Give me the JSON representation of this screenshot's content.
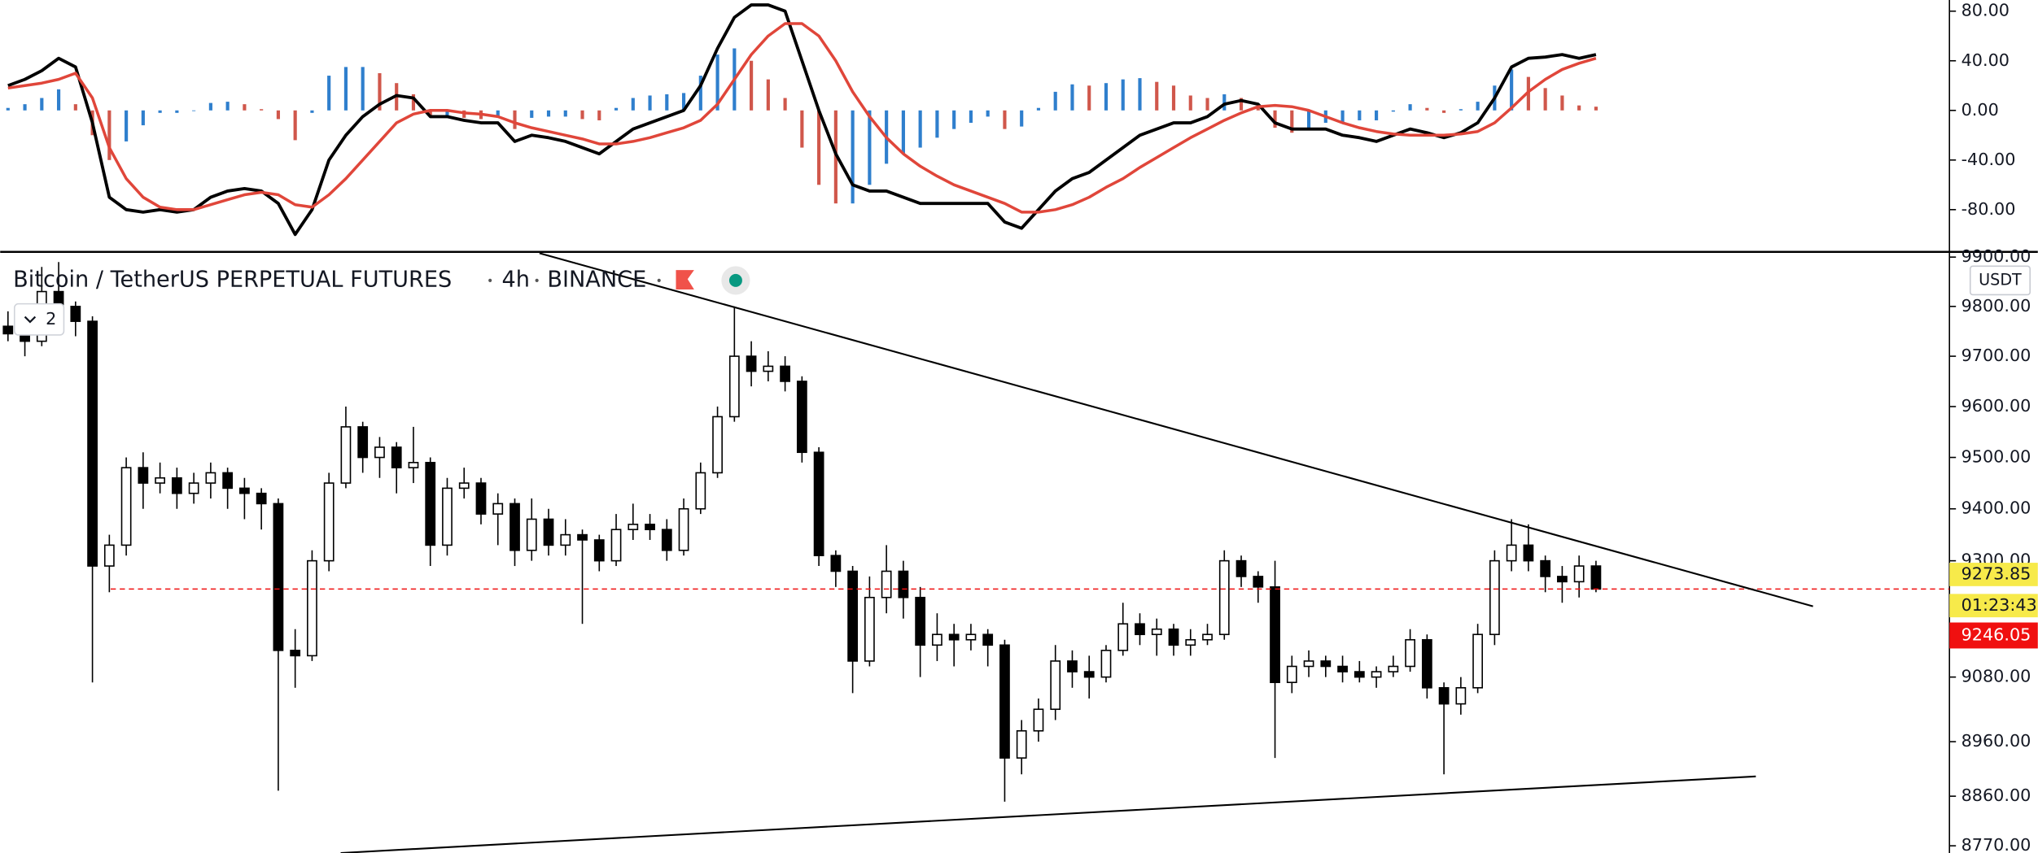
{
  "chart_data": [
    {
      "type": "macd",
      "ylim": [
        -113,
        89
      ],
      "yticks": [
        {
          "value": 80,
          "label": "80.00"
        },
        {
          "value": 40,
          "label": "40.00"
        },
        {
          "value": 0,
          "label": "0.00"
        },
        {
          "value": -40,
          "label": "-40.00"
        },
        {
          "value": -80,
          "label": "-80.00"
        }
      ],
      "series": [
        {
          "color": "#000000",
          "values": [
            20,
            25,
            32,
            42,
            35,
            -10,
            -70,
            -80,
            -82,
            -80,
            -82,
            -80,
            -70,
            -65,
            -63,
            -65,
            -75,
            -100,
            -80,
            -40,
            -20,
            -5,
            5,
            12,
            10,
            -5,
            -5,
            -8,
            -10,
            -10,
            -25,
            -20,
            -22,
            -25,
            -30,
            -35,
            -25,
            -15,
            -10,
            -5,
            0,
            20,
            50,
            75,
            85,
            85,
            80,
            40,
            0,
            -35,
            -60,
            -65,
            -65,
            -70,
            -75,
            -75,
            -75,
            -75,
            -75,
            -90,
            -95,
            -80,
            -65,
            -55,
            -50,
            -40,
            -30,
            -20,
            -15,
            -10,
            -10,
            -5,
            5,
            8,
            5,
            -10,
            -15,
            -15,
            -15,
            -20,
            -22,
            -25,
            -20,
            -15,
            -18,
            -22,
            -18,
            -10,
            10,
            35,
            42,
            43,
            45,
            42,
            45
          ]
        },
        {
          "color": "#e0463a",
          "values": [
            18,
            20,
            22,
            25,
            30,
            10,
            -30,
            -55,
            -70,
            -78,
            -80,
            -80,
            -76,
            -72,
            -68,
            -66,
            -68,
            -76,
            -78,
            -68,
            -55,
            -40,
            -25,
            -10,
            -3,
            0,
            0,
            -2,
            -3,
            -5,
            -10,
            -14,
            -17,
            -20,
            -23,
            -27,
            -27,
            -25,
            -22,
            -18,
            -14,
            -8,
            5,
            25,
            45,
            60,
            70,
            70,
            60,
            40,
            15,
            -5,
            -22,
            -35,
            -45,
            -53,
            -60,
            -65,
            -70,
            -75,
            -82,
            -82,
            -80,
            -76,
            -70,
            -62,
            -55,
            -46,
            -38,
            -30,
            -22,
            -15,
            -8,
            -2,
            3,
            4,
            3,
            0,
            -5,
            -10,
            -14,
            -17,
            -19,
            -20,
            -20,
            -20,
            -19,
            -17,
            -10,
            2,
            15,
            25,
            33,
            38,
            42
          ]
        }
      ],
      "histogram": {
        "rise_color": "#2f7fcd",
        "fall_color": "#d0574b",
        "values": [
          2,
          5,
          10,
          17,
          5,
          -20,
          -40,
          -25,
          -12,
          -2,
          -2,
          0,
          6,
          7,
          5,
          1,
          -7,
          -24,
          -2,
          28,
          35,
          35,
          30,
          22,
          13,
          -5,
          -5,
          -6,
          -7,
          -5,
          -15,
          -6,
          -5,
          -5,
          -7,
          -8,
          2,
          10,
          12,
          13,
          14,
          28,
          45,
          50,
          40,
          25,
          10,
          -30,
          -60,
          -75,
          -75,
          -60,
          -43,
          -35,
          -30,
          -22,
          -15,
          -10,
          -5,
          -15,
          -13,
          2,
          15,
          21,
          20,
          22,
          25,
          26,
          23,
          20,
          12,
          10,
          13,
          10,
          2,
          -14,
          -18,
          -15,
          -10,
          -10,
          -8,
          -8,
          -1,
          5,
          2,
          -2,
          1,
          7,
          20,
          33,
          27,
          18,
          12,
          4,
          3
        ]
      }
    },
    {
      "type": "candlestick",
      "title": "Bitcoin / TetherUS PERPETUAL FUTURES",
      "interval": "4h",
      "exchange": "BINANCE",
      "currency": "USDT",
      "indicator_count": 2,
      "log_scale": true,
      "ylim": [
        8757,
        9908
      ],
      "yticks": [
        {
          "value": 9900,
          "label": "9900.00"
        },
        {
          "value": 9800,
          "label": "9800.00"
        },
        {
          "value": 9700,
          "label": "9700.00"
        },
        {
          "value": 9600,
          "label": "9600.00"
        },
        {
          "value": 9500,
          "label": "9500.00"
        },
        {
          "value": 9400,
          "label": "9400.00"
        },
        {
          "value": 9300,
          "label": "9300.00"
        },
        {
          "value": 9080,
          "label": "9080.00"
        },
        {
          "value": 8960,
          "label": "8960.00"
        },
        {
          "value": 8860,
          "label": "8860.00"
        },
        {
          "value": 8770,
          "label": "8770.00"
        }
      ],
      "up_color": "#ffffff",
      "down_color": "#000000",
      "last_price_color": "#f01010",
      "marker_color": "#f7ea4a",
      "marker_price": 9273.85,
      "countdown": "01:23:43",
      "open": [
        9760,
        9745,
        9730,
        9830,
        9800,
        9770,
        9290,
        9330,
        9480,
        9450,
        9460,
        9430,
        9450,
        9470,
        9440,
        9430,
        9410,
        9130,
        9120,
        9300,
        9450,
        9560,
        9500,
        9520,
        9480,
        9490,
        9330,
        9440,
        9450,
        9390,
        9410,
        9320,
        9380,
        9330,
        9350,
        9340,
        9300,
        9360,
        9370,
        9360,
        9320,
        9400,
        9470,
        9580,
        9700,
        9670,
        9680,
        9650,
        9510,
        9310,
        9280,
        9110,
        9230,
        9280,
        9230,
        9140,
        9160,
        9150,
        9160,
        9140,
        8930,
        8980,
        9020,
        9110,
        9090,
        9080,
        9130,
        9180,
        9160,
        9170,
        9140,
        9150,
        9160,
        9300,
        9270,
        9250,
        9070,
        9100,
        9110,
        9100,
        9090,
        9080,
        9090,
        9100,
        9150,
        9060,
        9030,
        9060,
        9160,
        9300,
        9330,
        9300,
        9270,
        9260,
        9290
      ],
      "high": [
        9790,
        9760,
        9880,
        9890,
        9810,
        9780,
        9350,
        9500,
        9510,
        9490,
        9480,
        9470,
        9490,
        9480,
        9460,
        9440,
        9420,
        9170,
        9320,
        9470,
        9600,
        9570,
        9540,
        9530,
        9560,
        9500,
        9460,
        9480,
        9460,
        9430,
        9420,
        9420,
        9400,
        9380,
        9360,
        9350,
        9390,
        9410,
        9390,
        9380,
        9420,
        9490,
        9600,
        9800,
        9730,
        9710,
        9700,
        9660,
        9520,
        9320,
        9290,
        9270,
        9330,
        9300,
        9250,
        9200,
        9180,
        9180,
        9170,
        9150,
        9000,
        9040,
        9140,
        9130,
        9120,
        9140,
        9220,
        9200,
        9190,
        9180,
        9170,
        9180,
        9320,
        9310,
        9280,
        9300,
        9120,
        9130,
        9120,
        9120,
        9110,
        9100,
        9120,
        9170,
        9160,
        9070,
        9080,
        9180,
        9320,
        9380,
        9370,
        9310,
        9290,
        9310,
        9300
      ],
      "low": [
        9730,
        9700,
        9720,
        9780,
        9740,
        9070,
        9240,
        9310,
        9400,
        9430,
        9400,
        9410,
        9420,
        9400,
        9380,
        9360,
        8870,
        9060,
        9110,
        9280,
        9440,
        9470,
        9460,
        9430,
        9450,
        9290,
        9310,
        9420,
        9370,
        9330,
        9290,
        9300,
        9310,
        9310,
        9180,
        9280,
        9290,
        9340,
        9340,
        9300,
        9310,
        9390,
        9460,
        9570,
        9640,
        9650,
        9630,
        9490,
        9290,
        9250,
        9050,
        9100,
        9200,
        9190,
        9080,
        9110,
        9100,
        9130,
        9100,
        8850,
        8900,
        8960,
        9000,
        9060,
        9040,
        9070,
        9120,
        9140,
        9120,
        9120,
        9120,
        9140,
        9150,
        9250,
        9220,
        8930,
        9050,
        9080,
        9080,
        9070,
        9070,
        9060,
        9080,
        9090,
        9040,
        8900,
        9010,
        9050,
        9140,
        9280,
        9280,
        9240,
        9220,
        9230,
        9240
      ],
      "close": [
        9745,
        9730,
        9830,
        9800,
        9770,
        9290,
        9330,
        9480,
        9450,
        9460,
        9430,
        9450,
        9470,
        9440,
        9430,
        9410,
        9130,
        9120,
        9300,
        9450,
        9560,
        9500,
        9520,
        9480,
        9490,
        9330,
        9440,
        9450,
        9390,
        9410,
        9320,
        9380,
        9330,
        9350,
        9340,
        9300,
        9360,
        9370,
        9360,
        9320,
        9400,
        9470,
        9580,
        9700,
        9670,
        9680,
        9650,
        9510,
        9310,
        9280,
        9110,
        9230,
        9280,
        9230,
        9140,
        9160,
        9150,
        9160,
        9140,
        8930,
        8980,
        9020,
        9110,
        9090,
        9080,
        9130,
        9180,
        9160,
        9170,
        9140,
        9150,
        9160,
        9300,
        9270,
        9250,
        9070,
        9100,
        9110,
        9100,
        9090,
        9080,
        9090,
        9100,
        9150,
        9060,
        9030,
        9060,
        9160,
        9300,
        9330,
        9300,
        9270,
        9260,
        9290,
        9246.05
      ]
    }
  ]
}
